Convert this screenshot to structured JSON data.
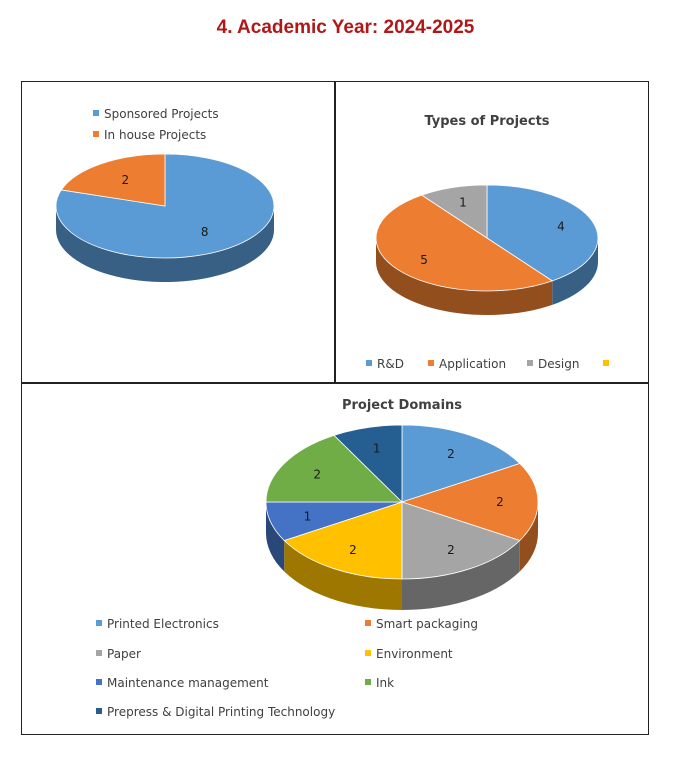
{
  "page": {
    "title": "4.  Academic Year: 2024-2025"
  },
  "colors": {
    "blue": "#5b9bd5",
    "orange": "#ed7d31",
    "gray": "#a5a5a5",
    "yellow": "#ffc000",
    "darkblue": "#4472c4",
    "green": "#70ad47",
    "navy": "#255e91"
  },
  "chart_data": [
    {
      "type": "pie",
      "style": "3d",
      "title": "",
      "legend_position": "top-left",
      "legend": [
        "Sponsored Projects",
        "In house Projects"
      ],
      "series": [
        {
          "categories": [
            "Sponsored Projects",
            "In house Projects"
          ],
          "values": [
            8,
            2
          ]
        }
      ],
      "data_labels": [
        "8",
        "2"
      ]
    },
    {
      "type": "pie",
      "style": "3d",
      "title": "Types of Projects",
      "legend_position": "bottom",
      "legend": [
        "R&D",
        "Application",
        "Design",
        ""
      ],
      "series": [
        {
          "categories": [
            "R&D",
            "Application",
            "Design",
            ""
          ],
          "values": [
            4,
            5,
            1,
            0
          ]
        }
      ],
      "data_labels": [
        "4",
        "5",
        "1"
      ]
    },
    {
      "type": "pie",
      "style": "3d",
      "title": "Project Domains",
      "legend_position": "bottom",
      "legend": [
        "Printed Electronics",
        "Smart packaging",
        "Paper",
        "Environment",
        "Maintenance management",
        "Ink",
        "Prepress & Digital Printing Technology"
      ],
      "series": [
        {
          "categories": [
            "Printed Electronics",
            "Smart packaging",
            "Paper",
            "Environment",
            "Maintenance management",
            "Ink",
            "Prepress & Digital Printing Technology"
          ],
          "values": [
            2,
            2,
            2,
            2,
            1,
            2,
            1
          ]
        }
      ],
      "data_labels": [
        "2",
        "2",
        "2",
        "2",
        "1",
        "2",
        "1"
      ]
    }
  ]
}
